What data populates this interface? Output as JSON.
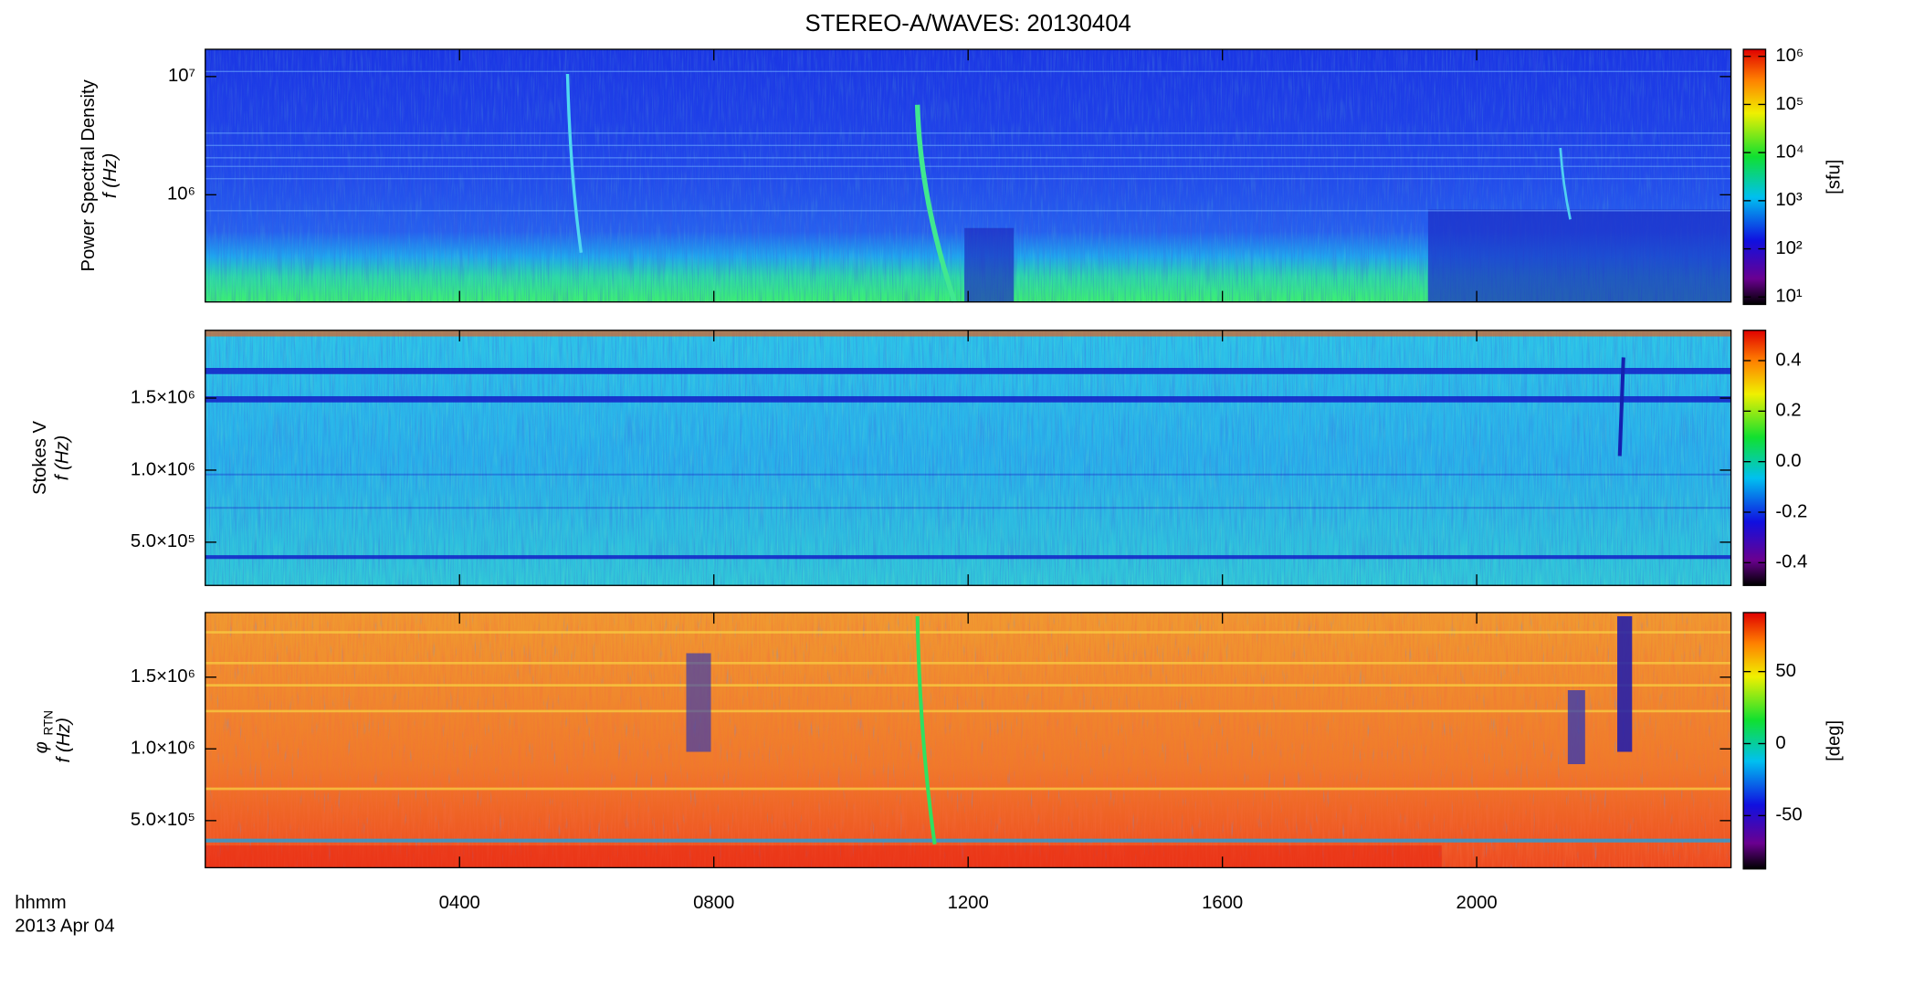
{
  "title": "STEREO-A/WAVES: 20130404",
  "x_label": "hhmm",
  "date_label": "2013 Apr 04",
  "xlim": [
    0,
    24
  ],
  "xticks": [
    {
      "value": 4,
      "label": "0400"
    },
    {
      "value": 8,
      "label": "0800"
    },
    {
      "value": 12,
      "label": "1200"
    },
    {
      "value": 16,
      "label": "1600"
    },
    {
      "value": 20,
      "label": "2000"
    }
  ],
  "chart_data": [
    {
      "type": "spectrogram",
      "ylabel_title": "Power Spectral Density",
      "ylabel": "f (Hz)",
      "log_y": true,
      "ylim": [
        124000,
        17000000
      ],
      "yticks": [
        {
          "value": 1000000,
          "label": "10⁶"
        },
        {
          "value": 10000000,
          "label": "10⁷"
        }
      ],
      "colorbar": {
        "label": "[sfu]",
        "log": true,
        "lim": [
          7,
          1400000
        ],
        "ticks": [
          {
            "value": 10,
            "label": "10¹"
          },
          {
            "value": 100,
            "label": "10²"
          },
          {
            "value": 1000,
            "label": "10³"
          },
          {
            "value": 10000,
            "label": "10⁴"
          },
          {
            "value": 100000,
            "label": "10⁵"
          },
          {
            "value": 1000000,
            "label": "10⁶"
          }
        ]
      }
    },
    {
      "type": "spectrogram",
      "ylabel_title": "Stokes V",
      "ylabel": "f (Hz)",
      "log_y": false,
      "ylim": [
        200000,
        1970000
      ],
      "yticks": [
        {
          "value": 500000,
          "label": "5.0×10⁵"
        },
        {
          "value": 1000000,
          "label": "1.0×10⁶"
        },
        {
          "value": 1500000,
          "label": "1.5×10⁶"
        }
      ],
      "colorbar": {
        "log": false,
        "lim": [
          -0.49,
          0.52
        ],
        "ticks": [
          -0.4,
          -0.2,
          {
            "value": 0,
            "label": "0.0"
          },
          0.2,
          0.4
        ]
      }
    },
    {
      "type": "spectrogram",
      "ylabel_symbol": "φ",
      "ylabel_subscript": "RTN",
      "ylabel": "f (Hz)",
      "log_y": false,
      "ylim": [
        172000,
        1950000
      ],
      "yticks": [
        {
          "value": 500000,
          "label": "5.0×10⁵"
        },
        {
          "value": 1000000,
          "label": "1.0×10⁶"
        },
        {
          "value": 1500000,
          "label": "1.5×10⁶"
        }
      ],
      "colorbar": {
        "label": "[deg]",
        "log": false,
        "lim": [
          -87,
          91
        ],
        "ticks": [
          -50,
          0,
          50
        ]
      }
    }
  ]
}
